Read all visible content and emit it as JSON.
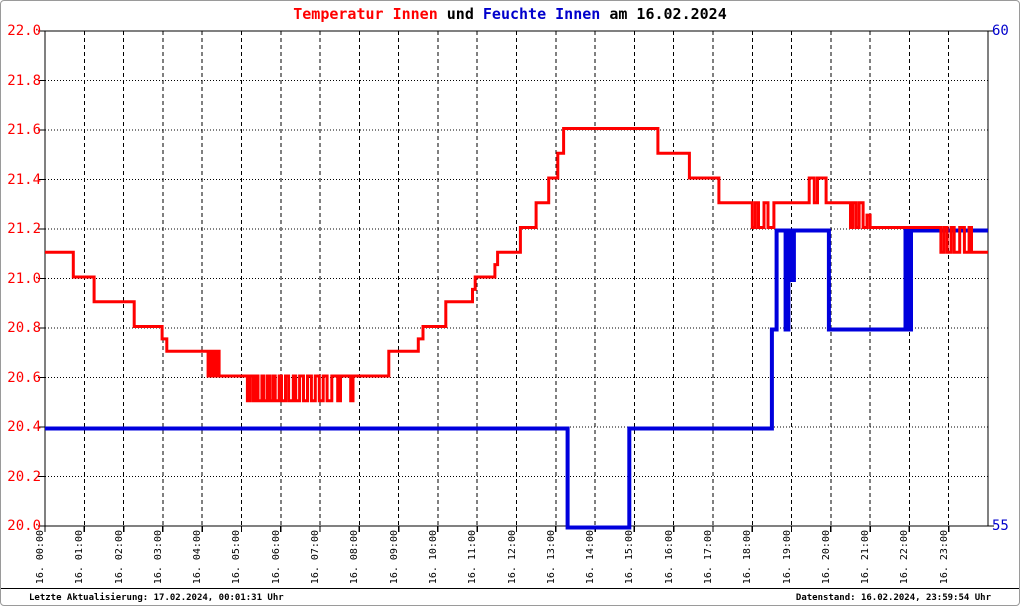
{
  "title": {
    "temp_part": "Temperatur Innen",
    "und": " und ",
    "humidity_part": "Feuchte Innen",
    "date_part": " am 16.02.2024"
  },
  "footer": {
    "left": "Letzte Aktualisierung: 17.02.2024, 00:01:31 Uhr",
    "right": "Datenstand: 16.02.2024, 23:59:54 Uhr"
  },
  "colors": {
    "temperature": "#ff0000",
    "humidity": "#0000dd",
    "grid": "#000000",
    "plot_border": "#000000",
    "page_border": "#9a9a9a"
  },
  "chart_data": {
    "type": "line",
    "title": "Temperatur Innen und Feuchte Innen am 16.02.2024",
    "x_axis": {
      "hours": 24,
      "tick_labels": [
        "16. 00:00",
        "16. 01:00",
        "16. 02:00",
        "16. 03:00",
        "16. 04:00",
        "16. 05:00",
        "16. 06:00",
        "16. 07:00",
        "16. 08:00",
        "16. 09:00",
        "16. 10:00",
        "16. 11:00",
        "16. 12:00",
        "16. 13:00",
        "16. 14:00",
        "16. 15:00",
        "16. 16:00",
        "16. 17:00",
        "16. 18:00",
        "16. 19:00",
        "16. 20:00",
        "16. 21:00",
        "16. 22:00",
        "16. 23:00"
      ]
    },
    "y_left": {
      "min": 20.0,
      "max": 22.0,
      "step": 0.2,
      "color": "#ff0000",
      "labels": [
        "22.0",
        "21.8",
        "21.6",
        "21.4",
        "21.2",
        "21.0",
        "20.8",
        "20.6",
        "20.4",
        "20.2",
        "20.0"
      ],
      "label_values": [
        22.0,
        21.8,
        21.6,
        21.4,
        21.2,
        21.0,
        20.8,
        20.6,
        20.4,
        20.2,
        20.0
      ]
    },
    "y_right": {
      "min": 55,
      "max": 60,
      "color": "#0000cc",
      "labels": [
        "60",
        "55"
      ],
      "label_values": [
        60,
        55
      ]
    },
    "grid": {
      "horizontal": "dotted",
      "vertical": "dashed"
    },
    "series": [
      {
        "name": "Feuchte Innen",
        "axis": "right",
        "color": "#0000dd",
        "stroke_width": 4,
        "points": [
          [
            0,
            56
          ],
          [
            13.3,
            55
          ],
          [
            14.87,
            56
          ],
          [
            18.5,
            57
          ],
          [
            18.62,
            58
          ],
          [
            18.85,
            57
          ],
          [
            18.92,
            58
          ],
          [
            19.0,
            57.5
          ],
          [
            19.06,
            58
          ],
          [
            19.95,
            57
          ],
          [
            21.9,
            58
          ],
          [
            21.98,
            57
          ],
          [
            22.04,
            58
          ]
        ]
      },
      {
        "name": "Temperatur Innen",
        "axis": "left",
        "color": "#ff0000",
        "stroke_width": 3,
        "points": [
          [
            0,
            21.1
          ],
          [
            0.72,
            21.0
          ],
          [
            1.25,
            20.9
          ],
          [
            2.27,
            20.8
          ],
          [
            2.98,
            20.75
          ],
          [
            3.1,
            20.7
          ],
          [
            4.15,
            20.6
          ],
          [
            4.19,
            20.7
          ],
          [
            4.23,
            20.6
          ],
          [
            4.27,
            20.7
          ],
          [
            4.31,
            20.6
          ],
          [
            4.38,
            20.7
          ],
          [
            4.43,
            20.6
          ],
          [
            5.15,
            20.5
          ],
          [
            5.22,
            20.6
          ],
          [
            5.3,
            20.5
          ],
          [
            5.36,
            20.6
          ],
          [
            5.42,
            20.5
          ],
          [
            5.52,
            20.6
          ],
          [
            5.57,
            20.5
          ],
          [
            5.66,
            20.6
          ],
          [
            5.72,
            20.5
          ],
          [
            5.8,
            20.6
          ],
          [
            5.86,
            20.5
          ],
          [
            5.96,
            20.6
          ],
          [
            6.02,
            20.5
          ],
          [
            6.12,
            20.6
          ],
          [
            6.2,
            20.5
          ],
          [
            6.32,
            20.6
          ],
          [
            6.38,
            20.5
          ],
          [
            6.48,
            20.6
          ],
          [
            6.58,
            20.5
          ],
          [
            6.68,
            20.6
          ],
          [
            6.78,
            20.5
          ],
          [
            6.88,
            20.6
          ],
          [
            6.98,
            20.5
          ],
          [
            7.08,
            20.6
          ],
          [
            7.18,
            20.5
          ],
          [
            7.3,
            20.6
          ],
          [
            7.45,
            20.5
          ],
          [
            7.52,
            20.6
          ],
          [
            7.78,
            20.5
          ],
          [
            7.84,
            20.6
          ],
          [
            8.75,
            20.7
          ],
          [
            9.5,
            20.75
          ],
          [
            9.62,
            20.8
          ],
          [
            10.2,
            20.9
          ],
          [
            10.88,
            20.95
          ],
          [
            10.95,
            21.0
          ],
          [
            11.45,
            21.05
          ],
          [
            11.52,
            21.1
          ],
          [
            12.1,
            21.2
          ],
          [
            12.5,
            21.3
          ],
          [
            12.82,
            21.4
          ],
          [
            13.05,
            21.5
          ],
          [
            13.2,
            21.6
          ],
          [
            15.6,
            21.5
          ],
          [
            16.4,
            21.4
          ],
          [
            17.15,
            21.3
          ],
          [
            18.0,
            21.2
          ],
          [
            18.08,
            21.3
          ],
          [
            18.16,
            21.2
          ],
          [
            18.3,
            21.3
          ],
          [
            18.4,
            21.2
          ],
          [
            18.55,
            21.3
          ],
          [
            19.45,
            21.4
          ],
          [
            19.58,
            21.3
          ],
          [
            19.66,
            21.4
          ],
          [
            19.88,
            21.3
          ],
          [
            20.5,
            21.2
          ],
          [
            20.56,
            21.3
          ],
          [
            20.64,
            21.2
          ],
          [
            20.72,
            21.3
          ],
          [
            20.82,
            21.2
          ],
          [
            20.92,
            21.25
          ],
          [
            21.0,
            21.2
          ],
          [
            22.8,
            21.1
          ],
          [
            22.88,
            21.2
          ],
          [
            22.96,
            21.1
          ],
          [
            23.06,
            21.2
          ],
          [
            23.14,
            21.1
          ],
          [
            23.28,
            21.2
          ],
          [
            23.4,
            21.1
          ],
          [
            23.52,
            21.2
          ],
          [
            23.58,
            21.1
          ]
        ]
      }
    ]
  }
}
